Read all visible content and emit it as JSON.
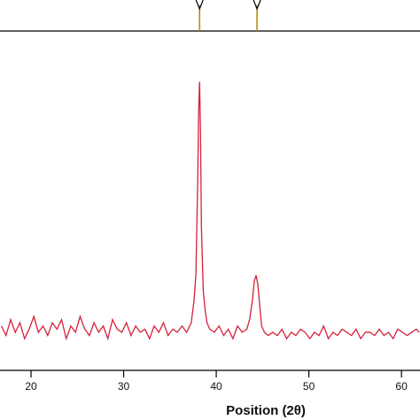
{
  "chart_data": {
    "type": "line",
    "x_label": "Position (2θ)",
    "x": [
      16.8,
      17.3,
      17.8,
      18.3,
      18.8,
      19.3,
      19.8,
      20.3,
      20.8,
      21.3,
      21.8,
      22.3,
      22.8,
      23.3,
      23.8,
      24.3,
      24.8,
      25.3,
      25.8,
      26.3,
      26.8,
      27.3,
      27.8,
      28.3,
      28.8,
      29.3,
      29.8,
      30.3,
      30.8,
      31.3,
      31.8,
      32.3,
      32.8,
      33.3,
      33.8,
      34.3,
      34.8,
      35.3,
      35.8,
      36.3,
      36.8,
      37.3,
      37.6,
      37.8,
      38.0,
      38.1,
      38.2,
      38.3,
      38.4,
      38.6,
      38.8,
      39.0,
      39.3,
      39.8,
      40.3,
      40.8,
      41.3,
      41.8,
      42.3,
      42.8,
      43.3,
      43.6,
      43.9,
      44.1,
      44.3,
      44.5,
      44.7,
      44.9,
      45.2,
      45.6,
      46.1,
      46.6,
      47.1,
      47.6,
      48.1,
      48.6,
      49.1,
      49.6,
      50.1,
      50.6,
      51.1,
      51.6,
      52.1,
      52.6,
      53.1,
      53.6,
      54.1,
      54.6,
      55.1,
      55.6,
      56.1,
      56.6,
      57.1,
      57.6,
      58.1,
      58.6,
      59.1,
      59.6,
      60.1,
      60.6,
      61.1,
      61.6,
      61.9
    ],
    "series": [
      {
        "color": "#d6203a",
        "values": [
          14,
          11,
          16,
          12,
          15,
          10,
          13,
          17,
          12,
          14,
          11,
          15,
          13,
          16,
          10,
          14,
          12,
          17,
          13,
          11,
          15,
          12,
          14,
          10,
          16,
          13,
          12,
          15,
          11,
          14,
          12,
          13,
          10,
          14,
          12,
          15,
          11,
          13,
          12,
          14,
          12,
          15,
          22,
          30,
          60,
          82,
          91,
          75,
          45,
          25,
          19,
          15,
          13,
          12,
          14,
          11,
          13,
          10,
          14,
          12,
          13,
          16,
          22,
          28,
          30,
          27,
          20,
          14,
          12,
          11,
          12,
          11,
          13,
          10,
          12,
          11,
          13,
          12,
          10,
          12,
          11,
          14,
          10,
          12,
          11,
          13,
          12,
          11,
          13,
          10,
          12,
          12,
          11,
          13,
          11,
          12,
          10,
          13,
          12,
          11,
          12,
          13,
          12
        ]
      }
    ],
    "xlim": [
      16.65,
      62.0
    ],
    "xticks": [
      20,
      30,
      40,
      50,
      60
    ],
    "ylim": [
      0,
      100
    ],
    "reference_lines": {
      "positions": [
        38.2,
        44.4
      ],
      "color": "#b8860b"
    }
  }
}
